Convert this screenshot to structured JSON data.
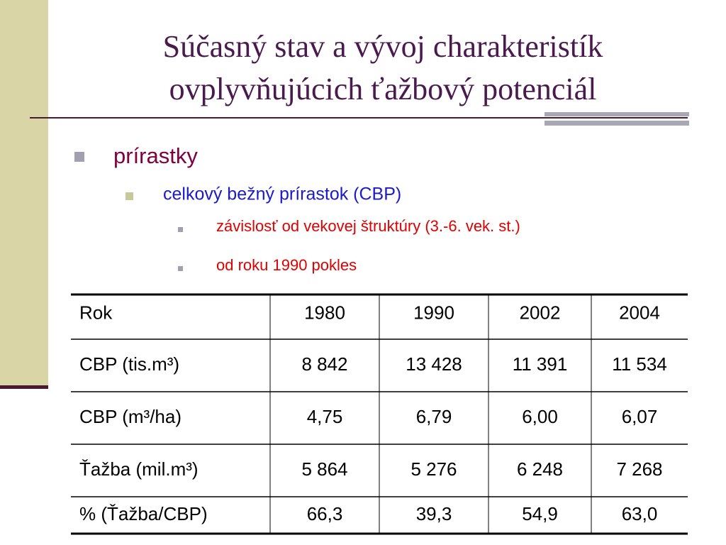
{
  "header": {
    "title_lines": [
      "Súčasný stav a vývoj charakteristík",
      "ovplyvňujúcich ťažbový potenciál"
    ]
  },
  "bullets": {
    "level1": "prírastky",
    "level2": "celkový bežný prírastok (CBP)",
    "level3": [
      "závislosť od vekovej štruktúry (3.-6. vek. st.)",
      "od roku 1990 pokles"
    ]
  },
  "table": {
    "rows": [
      [
        "Rok",
        "1980",
        "1990",
        "2002",
        "2004"
      ],
      [
        "CBP (tis.m³)",
        "8 842",
        "13 428",
        "11 391",
        "11 534"
      ],
      [
        "CBP (m³/ha)",
        "4,75",
        "6,79",
        "6,00",
        "6,07"
      ],
      [
        "Ťažba (mil.m³)",
        "5 864",
        "5 276",
        "6 248",
        "7 268"
      ],
      [
        "% (Ťažba/CBP)",
        "66,3",
        "39,3",
        "54,9",
        "63,0"
      ]
    ]
  }
}
